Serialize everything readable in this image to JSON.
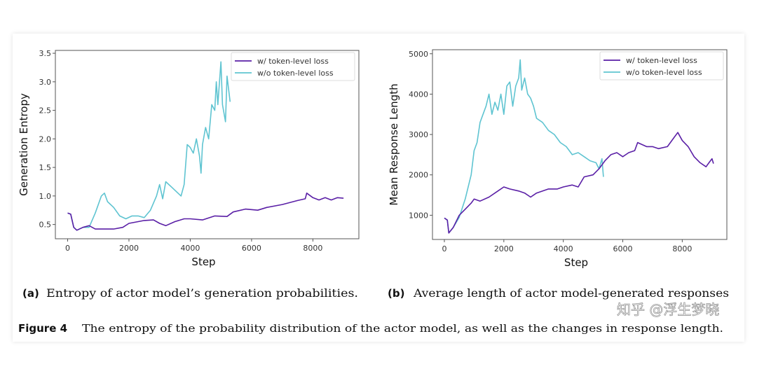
{
  "colors": {
    "with_loss": "#5a1fa6",
    "without_loss": "#5fc4d1"
  },
  "chart_data": [
    {
      "type": "line",
      "xlabel": "Step",
      "ylabel": "Generation Entropy",
      "xlim": [
        -400,
        9500
      ],
      "ylim": [
        0.25,
        3.55
      ],
      "xticks": [
        0,
        2000,
        4000,
        6000,
        8000
      ],
      "xtick_labels": [
        "0",
        "2000",
        "4000",
        "6000",
        "8000"
      ],
      "yticks": [
        0.5,
        1.0,
        1.5,
        2.0,
        2.5,
        3.0,
        3.5
      ],
      "ytick_labels": [
        "0.5",
        "1.0",
        "1.5",
        "2.0",
        "2.5",
        "3.0",
        "3.5"
      ],
      "legend_position": "top-right",
      "grid": false,
      "series": [
        {
          "name": "w/ token-level loss",
          "x": [
            0,
            100,
            200,
            300,
            500,
            700,
            900,
            1200,
            1500,
            1800,
            2000,
            2500,
            2800,
            3000,
            3200,
            3500,
            3800,
            4000,
            4400,
            4800,
            5200,
            5400,
            5800,
            6200,
            6500,
            7000,
            7500,
            7750,
            7800,
            8000,
            8200,
            8400,
            8600,
            8800,
            9000
          ],
          "y": [
            0.7,
            0.68,
            0.45,
            0.4,
            0.45,
            0.48,
            0.42,
            0.42,
            0.42,
            0.45,
            0.52,
            0.57,
            0.58,
            0.52,
            0.48,
            0.55,
            0.6,
            0.6,
            0.58,
            0.65,
            0.64,
            0.72,
            0.77,
            0.75,
            0.8,
            0.85,
            0.92,
            0.95,
            1.05,
            0.97,
            0.93,
            0.97,
            0.93,
            0.97,
            0.96
          ]
        },
        {
          "name": "w/o token-level loss",
          "x": [
            0,
            100,
            200,
            300,
            500,
            700,
            900,
            1100,
            1200,
            1300,
            1500,
            1700,
            1900,
            2100,
            2300,
            2500,
            2700,
            2900,
            3000,
            3100,
            3200,
            3400,
            3600,
            3700,
            3800,
            3900,
            4000,
            4100,
            4200,
            4300,
            4350,
            4400,
            4500,
            4600,
            4700,
            4800,
            4850,
            4900,
            5000,
            5050,
            5150,
            5200,
            5300
          ],
          "y": [
            0.7,
            0.68,
            0.45,
            0.4,
            0.45,
            0.45,
            0.7,
            1.0,
            1.05,
            0.9,
            0.8,
            0.65,
            0.6,
            0.65,
            0.65,
            0.62,
            0.75,
            1.0,
            1.2,
            0.95,
            1.25,
            1.15,
            1.05,
            1.0,
            1.2,
            1.9,
            1.85,
            1.75,
            2.0,
            1.7,
            1.4,
            1.9,
            2.2,
            2.0,
            2.6,
            2.5,
            3.0,
            2.6,
            3.35,
            2.6,
            2.3,
            3.1,
            2.65
          ]
        }
      ],
      "caption_tag": "(a)",
      "caption": "Entropy of actor model’s generation probabilities."
    },
    {
      "type": "line",
      "xlabel": "Step",
      "ylabel": "Mean Response Length",
      "xlim": [
        -400,
        9500
      ],
      "ylim": [
        400,
        5100
      ],
      "xticks": [
        0,
        2000,
        4000,
        6000,
        8000
      ],
      "xtick_labels": [
        "0",
        "2000",
        "4000",
        "6000",
        "8000"
      ],
      "yticks": [
        1000,
        2000,
        3000,
        4000,
        5000
      ],
      "ytick_labels": [
        "1000",
        "2000",
        "3000",
        "4000",
        "5000"
      ],
      "legend_position": "top-right",
      "grid": false,
      "series": [
        {
          "name": "w/ token-level loss",
          "x": [
            0,
            100,
            150,
            300,
            500,
            700,
            900,
            1000,
            1200,
            1500,
            1800,
            2000,
            2200,
            2500,
            2700,
            2900,
            3100,
            3500,
            3800,
            4000,
            4300,
            4500,
            4700,
            5000,
            5200,
            5400,
            5600,
            5800,
            6000,
            6200,
            6400,
            6500,
            6800,
            7000,
            7200,
            7500,
            7700,
            7850,
            8000,
            8200,
            8400,
            8600,
            8800,
            8900,
            9000,
            9050
          ],
          "y": [
            930,
            880,
            560,
            700,
            1000,
            1150,
            1300,
            1400,
            1350,
            1450,
            1600,
            1700,
            1650,
            1600,
            1550,
            1450,
            1550,
            1650,
            1650,
            1700,
            1750,
            1700,
            1950,
            2000,
            2150,
            2350,
            2500,
            2550,
            2450,
            2550,
            2600,
            2800,
            2700,
            2700,
            2650,
            2700,
            2900,
            3050,
            2850,
            2700,
            2450,
            2300,
            2200,
            2300,
            2400,
            2280
          ]
        },
        {
          "name": "w/o token-level loss",
          "x": [
            0,
            100,
            150,
            300,
            500,
            700,
            900,
            1000,
            1100,
            1200,
            1300,
            1400,
            1500,
            1600,
            1700,
            1800,
            1900,
            2000,
            2100,
            2200,
            2300,
            2400,
            2500,
            2550,
            2600,
            2700,
            2800,
            2900,
            3000,
            3100,
            3300,
            3500,
            3700,
            3900,
            4100,
            4300,
            4500,
            4700,
            4900,
            5100,
            5200,
            5300,
            5350
          ],
          "y": [
            930,
            880,
            560,
            700,
            950,
            1400,
            2000,
            2600,
            2800,
            3300,
            3500,
            3700,
            4000,
            3500,
            3800,
            3600,
            4000,
            3500,
            4200,
            4300,
            3700,
            4200,
            4400,
            4850,
            4100,
            4400,
            4000,
            3900,
            3700,
            3400,
            3300,
            3100,
            3000,
            2800,
            2700,
            2500,
            2550,
            2450,
            2350,
            2300,
            2150,
            2400,
            1950
          ]
        }
      ],
      "caption_tag": "(b)",
      "caption": "Average length of actor model-generated responses"
    }
  ],
  "figure": {
    "label": "Figure 4",
    "caption": "The entropy of the probability distribution of the actor model, as well as the changes in response length."
  },
  "watermark": "知乎 @浮生梦晓"
}
